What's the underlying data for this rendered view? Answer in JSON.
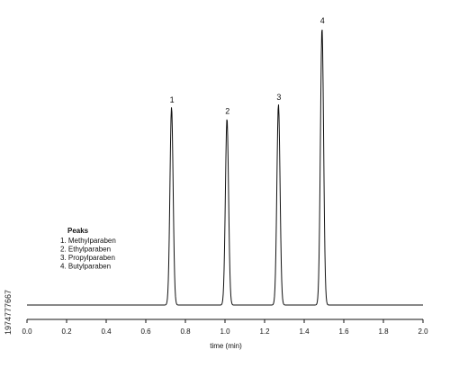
{
  "chart_data": {
    "type": "line",
    "xlabel": "time (min)",
    "ylabel": "",
    "xlim": [
      0.0,
      2.0
    ],
    "ylim": [
      0,
      100
    ],
    "x_ticks": [
      "0.0",
      "0.2",
      "0.4",
      "0.6",
      "0.8",
      "1.0",
      "1.2",
      "1.4",
      "1.6",
      "1.8",
      "2.0"
    ],
    "baseline": 2,
    "grid": false,
    "peaks": [
      {
        "label": "1",
        "x": 0.73,
        "height": 72
      },
      {
        "label": "2",
        "x": 1.01,
        "height": 68
      },
      {
        "label": "3",
        "x": 1.27,
        "height": 73
      },
      {
        "label": "4",
        "x": 1.49,
        "height": 100
      }
    ],
    "legend": {
      "title": "Peaks",
      "items": [
        "1. Methylparaben",
        "2. Ethylparaben",
        "3. Propylparaben",
        "4. Butylparaben"
      ],
      "placement": "left"
    }
  },
  "watermark": {
    "id_text": "1974777667"
  }
}
